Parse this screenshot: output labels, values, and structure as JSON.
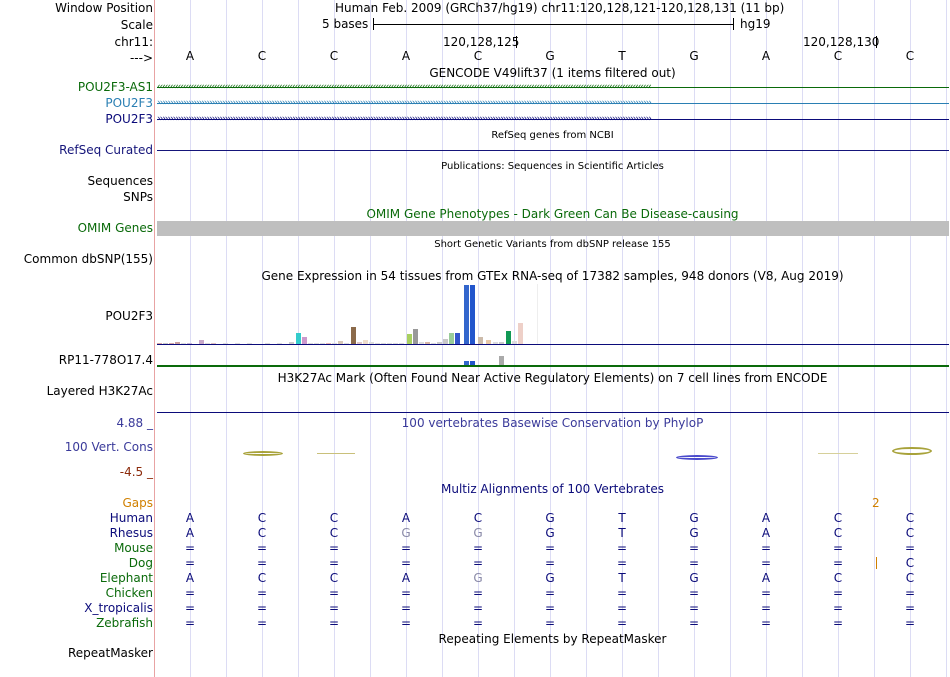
{
  "header": {
    "window_position_label": "Window Position",
    "window_position_value": "Human Feb. 2009 (GRCh37/hg19)    chr11:120,128,121-120,128,131 (11 bp)",
    "scale_label": "Scale",
    "scale_value": "5 bases",
    "scale_db": "hg19",
    "chrom_label": "chr11:",
    "pos1": "120,128,125",
    "pos2": "120,128,130",
    "strand_label": "--->"
  },
  "bases": [
    "A",
    "C",
    "C",
    "A",
    "C",
    "G",
    "T",
    "G",
    "A",
    "C",
    "C"
  ],
  "tracks": {
    "gencode_title": "GENCODE V49lift37 (1 items filtered out)",
    "gencode_items": [
      {
        "label": "POU2F3-AS1",
        "color": "#0a6a0a",
        "arrows": "‹"
      },
      {
        "label": "POU2F3",
        "color": "#2a7fb3",
        "arrows": "›"
      },
      {
        "label": "POU2F3",
        "color": "#0b0b7a",
        "arrows": "›"
      }
    ],
    "refseq_title": "RefSeq genes from NCBI",
    "refseq_label": "RefSeq Curated",
    "pubs_title": "Publications: Sequences in Scientific Articles",
    "sequences_label": "Sequences",
    "snps_label": "SNPs",
    "omim_title": "OMIM Gene Phenotypes - Dark Green Can Be Disease-causing",
    "omim_label": "OMIM Genes",
    "dbsnp_title": "Short Genetic Variants from dbSNP release 155",
    "dbsnp_label": "Common dbSNP(155)",
    "gtex_title": "Gene Expression in 54 tissues from GTEx RNA-seq of 17382 samples, 948 donors (V8, Aug 2019)",
    "gtex_label1": "POU2F3",
    "gtex_label2": "RP11-778O17.4",
    "h3k27_title": "H3K27Ac Mark (Often Found Near Active Regulatory Elements) on 7 cell lines from ENCODE",
    "h3k27_label": "Layered H3K27Ac",
    "cons_max": "4.88 _",
    "cons_title": "100 vertebrates Basewise Conservation by PhyloP",
    "cons_label": "100 Vert. Cons",
    "cons_min": "-4.5 _",
    "multiz_title": "Multiz Alignments of 100 Vertebrates",
    "gaps_label": "Gaps",
    "gaps_value": "2",
    "rmsk_title": "Repeating Elements by RepeatMasker",
    "rmsk_label": "RepeatMasker"
  },
  "species": [
    {
      "name": "Human",
      "color": "#0b0b7a",
      "row": [
        "A",
        "C",
        "C",
        "A",
        "C",
        "G",
        "T",
        "G",
        "A",
        "C",
        "C"
      ]
    },
    {
      "name": "Rhesus",
      "color": "#0b0b7a",
      "row": [
        "A",
        "C",
        "C",
        "G",
        "G",
        "G",
        "T",
        "G",
        "A",
        "C",
        "C"
      ]
    },
    {
      "name": "Mouse",
      "color": "#0a6a0a",
      "row": [
        "=",
        "=",
        "=",
        "=",
        "=",
        "=",
        "=",
        "=",
        "=",
        "=",
        "="
      ]
    },
    {
      "name": "Dog",
      "color": "#0a6a0a",
      "row": [
        "=",
        "=",
        "=",
        "=",
        "=",
        "=",
        "=",
        "=",
        "=",
        "=",
        "C"
      ]
    },
    {
      "name": "Elephant",
      "color": "#0a6a0a",
      "row": [
        "A",
        "C",
        "C",
        "A",
        "G",
        "G",
        "T",
        "G",
        "A",
        "C",
        "C"
      ]
    },
    {
      "name": "Chicken",
      "color": "#0a6a0a",
      "row": [
        "=",
        "=",
        "=",
        "=",
        "=",
        "=",
        "=",
        "=",
        "=",
        "=",
        "="
      ]
    },
    {
      "name": "X_tropicalis",
      "color": "#0b0b7a",
      "row": [
        "=",
        "=",
        "=",
        "=",
        "=",
        "=",
        "=",
        "=",
        "=",
        "=",
        "="
      ]
    },
    {
      "name": "Zebrafish",
      "color": "#0a6a0a",
      "row": [
        "=",
        "=",
        "=",
        "=",
        "=",
        "=",
        "=",
        "=",
        "=",
        "=",
        "="
      ]
    }
  ],
  "colors": {
    "gencode_green": "#0a6a0a",
    "gencode_blue": "#2a7fb3",
    "navy": "#0b0b7a",
    "refseq": "#15157a",
    "omim_bar": "#bfbfbf",
    "cons_label": "#3a3a9a",
    "cons_min": "#8b2a0a",
    "gaps": "#d08000"
  }
}
